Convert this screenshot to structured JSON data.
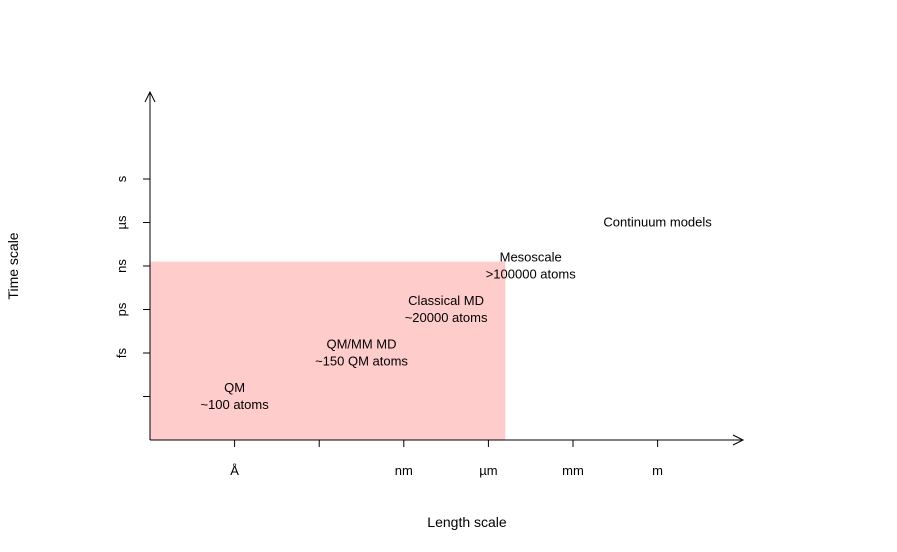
{
  "chart_data": {
    "type": "area",
    "title": "",
    "xlabel": "Length scale",
    "ylabel": "Time scale",
    "x_ticks": [
      "",
      "Å",
      "",
      "nm",
      "µm",
      "mm",
      "m"
    ],
    "y_ticks": [
      "",
      "fs",
      "ps",
      "ns",
      "µs",
      "s"
    ],
    "shaded_region": {
      "color": "#ffcccc",
      "x_range": [
        0,
        4.2
      ],
      "y_range": [
        0,
        4.1
      ]
    },
    "annotations": [
      {
        "lines": [
          "QM",
          "~100 atoms"
        ],
        "x": 1.0,
        "y": 1.0
      },
      {
        "lines": [
          "QM/MM MD",
          "~150 QM atoms"
        ],
        "x": 2.5,
        "y": 2.0
      },
      {
        "lines": [
          "Classical MD",
          "~20000 atoms"
        ],
        "x": 3.5,
        "y": 3.0
      },
      {
        "lines": [
          "Mesoscale",
          ">100000 atoms"
        ],
        "x": 4.5,
        "y": 4.0
      },
      {
        "lines": [
          "Continuum models"
        ],
        "x": 6.0,
        "y": 5.0
      }
    ],
    "grid": false,
    "legend": "none"
  }
}
